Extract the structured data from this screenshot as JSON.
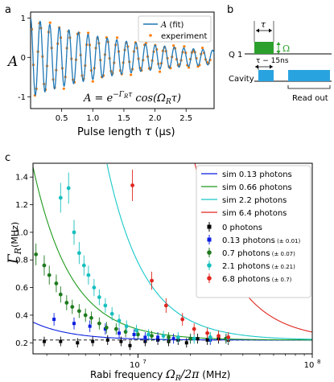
{
  "panels": {
    "a": "a",
    "b": "b",
    "c": "c"
  },
  "chart_data": [
    {
      "type": "line",
      "panel": "a",
      "ylabel": "A",
      "xlabel": "Pulse length",
      "xlabel_symbol": "τ",
      "xlabel_unit": "(μs)",
      "xlim": [
        0,
        2.95
      ],
      "ylim": [
        -1.3,
        1.15
      ],
      "xticks": [
        "0.5",
        "1.0",
        "1.5",
        "2.0",
        "2.5"
      ],
      "xtick_values": [
        0.5,
        1.0,
        1.5,
        2.0,
        2.5
      ],
      "yticks": [
        "-1",
        "0",
        "1"
      ],
      "ytick_values": [
        -1,
        0,
        1
      ],
      "legend": {
        "position": "top-right",
        "fit_label_symbol": "A",
        "fit_label_text": "(fit)",
        "exp_label": "experiment"
      },
      "equation": "A = e^{−Γ_R τ} cos(Ω_R τ)",
      "equation_parts": {
        "lhs": "A = e",
        "exp": "−Γ",
        "exp_sub": "R",
        "exp_tau": "τ",
        "rest": "cos(Ω",
        "rest_sub": "R",
        "rest_tau": "τ)"
      },
      "fit": {
        "Omega_rad_per_us": 40.8,
        "Gamma_per_us": 0.58
      },
      "series_colors": {
        "fit": "#1f77b4",
        "experiment": "#ff7f0e"
      }
    },
    {
      "type": "diagram",
      "panel": "b",
      "q1_label": "Q 1",
      "cavity_label": "Cavity",
      "tau_label": "τ",
      "omega_label": "Ω",
      "delay_label": "τ − 15ns",
      "readout_label": "Read out",
      "colors": {
        "q1_pulse": "#2ca02c",
        "cavity_pulse": "#29a3e0"
      }
    },
    {
      "type": "scatter",
      "panel": "c",
      "ylabel": "Γ",
      "ylabel_sub": "R",
      "ylabel_unit": "(MHz)",
      "xlabel": "Rabi frequency",
      "xlabel_symbol": "Ω",
      "xlabel_sub": "R",
      "xlabel_rest": "/2π",
      "xlabel_unit": "(MHz)",
      "x_scale": "log",
      "xlim": [
        2500000,
        100000000
      ],
      "ylim": [
        0.12,
        1.5
      ],
      "xticks": [
        "10",
        "10"
      ],
      "xtick_exponents": [
        "7",
        "8"
      ],
      "xtick_values": [
        10000000,
        100000000
      ],
      "yticks": [
        "0.2",
        "0.4",
        "0.6",
        "0.8",
        "1.0",
        "1.2",
        "1.4"
      ],
      "ytick_values": [
        0.2,
        0.4,
        0.6,
        0.8,
        1.0,
        1.2,
        1.4
      ],
      "baseline": 0.22,
      "legend_position": "top-right",
      "sim_series": [
        {
          "name": "sim 0.13 photons",
          "color": "#0b1fe0",
          "k": 900000.0
        },
        {
          "name": "sim 0.66 photons",
          "color": "#1e9b1e",
          "k": 2800000.0
        },
        {
          "name": "sim 2.2 photons",
          "color": "#19c8c8",
          "k": 7500000.0
        },
        {
          "name": "sim 6.4 photons",
          "color": "#e0261e",
          "k": 24000000.0
        }
      ],
      "exp_series": [
        {
          "name": "0 photons",
          "unc": "",
          "color": "#000000",
          "marker": "square",
          "x": [
            2900000.0,
            3600000.0,
            4500000.0,
            5500000.0,
            6700000.0,
            8000000.0,
            9000000.0,
            11000000.0,
            13000000.0,
            15000000.0,
            17000000.0,
            19000000.0,
            22000000.0,
            25000000.0,
            29000000.0,
            33000000.0
          ],
          "y": [
            0.21,
            0.21,
            0.2,
            0.21,
            0.22,
            0.21,
            0.18,
            0.21,
            0.22,
            0.21,
            0.22,
            0.2,
            0.23,
            0.22,
            0.23,
            0.22
          ]
        },
        {
          "name": "0.13 photons",
          "unc": "(± 0.01)",
          "color": "#0b1fe0",
          "marker": "square",
          "x": [
            3300000.0,
            4300000.0,
            5300000.0,
            6500000.0,
            7800000.0,
            9500000.0,
            11000000.0,
            13000000.0,
            16000000.0,
            20000000.0,
            26000000.0,
            32000000.0
          ],
          "y": [
            0.37,
            0.34,
            0.32,
            0.3,
            0.27,
            0.26,
            0.24,
            0.24,
            0.23,
            0.23,
            0.22,
            0.23
          ]
        },
        {
          "name": "0.7 photons",
          "unc": "(± 0.07)",
          "color": "#1e7a1e",
          "marker": "circle",
          "x": [
            2600000.0,
            2900000.0,
            3100000.0,
            3400000.0,
            3600000.0,
            3900000.0,
            4200000.0,
            4600000.0,
            5000000.0,
            5400000.0,
            6000000.0,
            6600000.0,
            7500000.0,
            8500000.0,
            10000000.0,
            12000000.0,
            15000000.0,
            20000000.0,
            26000000.0,
            32000000.0
          ],
          "y": [
            0.84,
            0.76,
            0.69,
            0.63,
            0.55,
            0.49,
            0.46,
            0.43,
            0.4,
            0.38,
            0.34,
            0.31,
            0.3,
            0.28,
            0.26,
            0.25,
            0.24,
            0.23,
            0.24,
            0.23
          ]
        },
        {
          "name": "2.1 photons",
          "unc": "(± 0.21)",
          "color": "#19bfbf",
          "marker": "circle",
          "x": [
            3600000.0,
            4000000.0,
            4300000.0,
            4600000.0,
            4900000.0,
            5200000.0,
            5600000.0,
            6000000.0,
            6500000.0,
            7100000.0,
            7800000.0,
            8600000.0,
            9800000.0,
            11500000.0,
            14000000.0,
            17000000.0,
            21000000.0,
            26000000.0,
            33000000.0
          ],
          "y": [
            1.25,
            1.32,
            1.0,
            0.85,
            0.76,
            0.69,
            0.6,
            0.53,
            0.47,
            0.41,
            0.36,
            0.32,
            0.29,
            0.26,
            0.25,
            0.24,
            0.23,
            0.24,
            0.23
          ]
        },
        {
          "name": "6.8 photons",
          "unc": "(± 0.7)",
          "color": "#e0261e",
          "marker": "circle",
          "x": [
            9300000.0,
            12000000.0,
            14500000.0,
            18000000.0,
            21000000.0,
            25000000.0,
            29000000.0,
            33000000.0
          ],
          "y": [
            1.34,
            0.65,
            0.47,
            0.37,
            0.3,
            0.27,
            0.25,
            0.24
          ]
        }
      ]
    }
  ]
}
